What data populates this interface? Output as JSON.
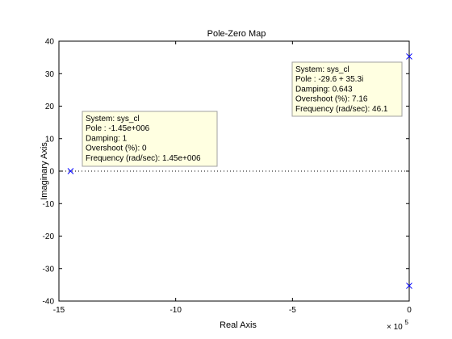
{
  "chart_data": {
    "type": "scatter",
    "title": "Pole-Zero Map",
    "xlabel": "Real Axis",
    "ylabel": "Imaginary Axis",
    "x_exponent_label": "× 10",
    "x_exponent_power": "5",
    "xlim": [
      -15,
      0
    ],
    "ylim": [
      -40,
      40
    ],
    "x_ticks": [
      -15,
      -10,
      -5,
      0
    ],
    "x_tick_labels": [
      "-15",
      "-10",
      "-5",
      "0"
    ],
    "y_ticks": [
      -40,
      -30,
      -20,
      -10,
      0,
      10,
      20,
      30,
      40
    ],
    "y_tick_labels": [
      "-40",
      "-30",
      "-20",
      "-10",
      "0",
      "10",
      "20",
      "30",
      "40"
    ],
    "grid": false,
    "marker_color": "#0000ff",
    "tooltip_bg": "#ffffe1",
    "poles": [
      {
        "x": -14.5,
        "y": 0
      },
      {
        "x": -0.000296,
        "y": 35.3
      },
      {
        "x": -0.000296,
        "y": -35.3
      }
    ],
    "tooltips": [
      {
        "lines": [
          "System: sys_cl",
          "Pole : -1.45e+006",
          "Damping: 1",
          "Overshoot (%): 0",
          "Frequency (rad/sec): 1.45e+006"
        ]
      },
      {
        "lines": [
          "System: sys_cl",
          "Pole : -29.6 + 35.3i",
          "Damping: 0.643",
          "Overshoot (%): 7.16",
          "Frequency (rad/sec): 46.1"
        ]
      }
    ]
  }
}
